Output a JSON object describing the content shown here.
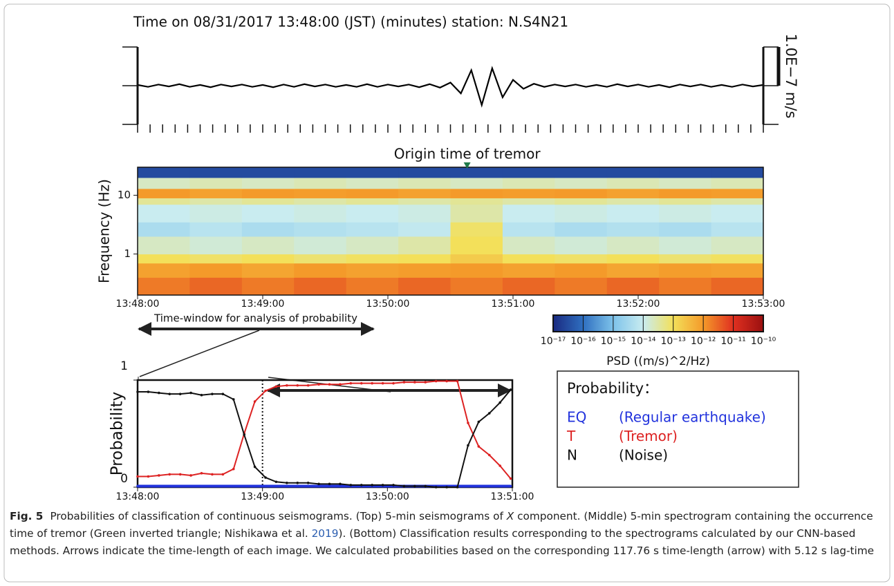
{
  "chart_data": [
    {
      "type": "waveform",
      "title": "Time on 08/31/2017 13:48:00 (JST) (minutes)  station: N.S4N21",
      "color": "#000000",
      "x": [
        0,
        5,
        10,
        15,
        20,
        25,
        30,
        35,
        40,
        45,
        50,
        55,
        60,
        65,
        70,
        75,
        80,
        85,
        90,
        95,
        100,
        105,
        110,
        115,
        120,
        125,
        130,
        135,
        140,
        145,
        150,
        155,
        160,
        165,
        170,
        175,
        180,
        185,
        190,
        195,
        200,
        205,
        210,
        215,
        220,
        225,
        230,
        235,
        240,
        245,
        250,
        255,
        260,
        265,
        270,
        275,
        280,
        285,
        290,
        295,
        300
      ],
      "values": [
        2e-09,
        -3e-09,
        3e-09,
        -2e-09,
        4e-09,
        -3e-09,
        2e-09,
        -4e-09,
        3e-09,
        -2e-09,
        3e-09,
        -3e-09,
        2e-09,
        -4e-09,
        3e-09,
        -3e-09,
        4e-09,
        -2e-09,
        3e-09,
        -3e-09,
        2e-09,
        -3e-09,
        4e-09,
        -3e-09,
        3e-09,
        -2e-09,
        3e-09,
        -4e-09,
        4e-09,
        -5e-09,
        8e-09,
        -2e-08,
        4e-08,
        -5e-08,
        4.5e-08,
        -3e-08,
        1.5e-08,
        -8e-09,
        5e-09,
        -3e-09,
        3e-09,
        -2e-09,
        3e-09,
        -3e-09,
        2e-09,
        -3e-09,
        4e-09,
        -2e-09,
        3e-09,
        -3e-09,
        2e-09,
        -4e-09,
        3e-09,
        -2e-09,
        3e-09,
        -3e-09,
        2e-09,
        -3e-09,
        3e-09,
        -2e-09,
        2e-09
      ],
      "xlim": [
        0,
        300
      ],
      "ylim": [
        -1e-07,
        1e-07
      ],
      "scale_bar": {
        "value": 1e-07,
        "label": "1.0E−7 m/s"
      }
    },
    {
      "type": "heatmap",
      "y_label": "Frequency (Hz)",
      "log_y": true,
      "x_bins": [
        0,
        25,
        50,
        75,
        100,
        125,
        150,
        175,
        200,
        225,
        250,
        275,
        300
      ],
      "y_bins": [
        0.2,
        0.4,
        0.7,
        1,
        2,
        3.5,
        7,
        9,
        13,
        20,
        30
      ],
      "values": [
        [
          2e-12,
          3e-12,
          2e-12,
          3e-12,
          2e-12,
          3e-12,
          2e-12,
          3e-12,
          2e-12,
          3e-12,
          2e-12,
          3e-12
        ],
        [
          8e-13,
          1e-12,
          7e-13,
          1e-12,
          8e-13,
          9e-13,
          1e-12,
          8e-13,
          1e-12,
          7e-13,
          9e-13,
          8e-13
        ],
        [
          1e-13,
          8e-14,
          1e-13,
          7e-14,
          9e-14,
          1e-13,
          2e-13,
          1e-13,
          8e-14,
          1e-13,
          7e-14,
          9e-14
        ],
        [
          2e-14,
          1.5e-14,
          2e-14,
          1.5e-14,
          2e-14,
          3e-14,
          1e-13,
          2e-14,
          1.5e-14,
          2e-14,
          1.5e-14,
          2e-14
        ],
        [
          4e-15,
          6e-15,
          4e-15,
          5e-15,
          6e-15,
          8e-15,
          8e-14,
          6e-15,
          4e-15,
          5e-15,
          4e-15,
          6e-15
        ],
        [
          1e-14,
          1.2e-14,
          1e-14,
          1.2e-14,
          1e-14,
          1.2e-14,
          3e-14,
          1e-14,
          1.2e-14,
          1e-14,
          1.2e-14,
          1e-14
        ],
        [
          4e-14,
          3e-14,
          4e-14,
          3e-14,
          4e-14,
          3e-14,
          4e-14,
          3e-14,
          4e-14,
          3e-14,
          4e-14,
          3e-14
        ],
        [
          1e-12,
          8e-13,
          1e-12,
          9e-13,
          1e-12,
          8e-13,
          1e-12,
          9e-13,
          1e-12,
          8e-13,
          1e-12,
          9e-13
        ],
        [
          2e-14,
          2.5e-14,
          2e-14,
          2.5e-14,
          2e-14,
          2.5e-14,
          2e-14,
          2.5e-14,
          2e-14,
          2.5e-14,
          2e-14,
          2.5e-14
        ],
        [
          3e-17,
          3e-17,
          3e-17,
          3e-17,
          3e-17,
          3e-17,
          3e-17,
          3e-17,
          3e-17,
          3e-17,
          3e-17,
          3e-17
        ]
      ],
      "xlim": [
        0,
        300
      ],
      "ylim": [
        0.2,
        30
      ],
      "yticks": [
        1,
        10
      ],
      "xticks": [
        {
          "value": 0,
          "label": "13:48:00"
        },
        {
          "value": 60,
          "label": "13:49:00"
        },
        {
          "value": 120,
          "label": "13:50:00"
        },
        {
          "value": 180,
          "label": "13:51:00"
        },
        {
          "value": 240,
          "label": "13:52:00"
        },
        {
          "value": 300,
          "label": "13:53:00"
        }
      ],
      "annotation": {
        "text": "Origin time of tremor",
        "x": 158,
        "color": "#1f7a4a"
      },
      "window_label": "Time-window for analysis of probability",
      "colorbar": {
        "label": "PSD ((m/s)^2/Hz)",
        "lim": [
          1e-17,
          1e-10
        ],
        "ticks": [
          {
            "value": 1e-17,
            "label": "10⁻¹⁷"
          },
          {
            "value": 1e-16,
            "label": "10⁻¹⁶"
          },
          {
            "value": 1e-15,
            "label": "10⁻¹⁵"
          },
          {
            "value": 1e-14,
            "label": "10⁻¹⁴"
          },
          {
            "value": 1e-13,
            "label": "10⁻¹³"
          },
          {
            "value": 1e-12,
            "label": "10⁻¹²"
          },
          {
            "value": 1e-11,
            "label": "10⁻¹¹"
          },
          {
            "value": 1e-10,
            "label": "10⁻¹⁰"
          }
        ]
      }
    },
    {
      "type": "line",
      "y_label": "Probability",
      "x": [
        0,
        5.12,
        10.24,
        15.36,
        20.48,
        25.6,
        30.72,
        35.84,
        40.96,
        46.08,
        51.2,
        56.32,
        61.44,
        66.56,
        71.68,
        76.8,
        81.92,
        87.04,
        92.16,
        97.28,
        102.4,
        107.52,
        112.64,
        117.76,
        122.88,
        128,
        133.12,
        138.24,
        143.36,
        148.48,
        153.6,
        158.72,
        163.84,
        168.96,
        174.08,
        179.2
      ],
      "series": [
        {
          "name": "EQ",
          "description": "(Regular earthquake)",
          "color": "#2233dd",
          "values": [
            0.01,
            0.01,
            0.01,
            0.01,
            0.01,
            0.01,
            0.01,
            0.01,
            0.01,
            0.01,
            0.01,
            0.01,
            0.01,
            0.01,
            0.01,
            0.01,
            0.01,
            0.01,
            0.01,
            0.01,
            0.01,
            0.01,
            0.01,
            0.01,
            0.01,
            0.01,
            0.01,
            0.01,
            0.01,
            0.01,
            0.01,
            0.01,
            0.01,
            0.01,
            0.01,
            0.01
          ]
        },
        {
          "name": "T",
          "description": "(Tremor)",
          "color": "#dd2222",
          "values": [
            0.1,
            0.1,
            0.11,
            0.12,
            0.12,
            0.11,
            0.13,
            0.12,
            0.12,
            0.17,
            0.5,
            0.8,
            0.9,
            0.94,
            0.95,
            0.95,
            0.95,
            0.96,
            0.96,
            0.96,
            0.97,
            0.97,
            0.97,
            0.97,
            0.97,
            0.98,
            0.98,
            0.98,
            0.99,
            0.99,
            0.99,
            0.6,
            0.38,
            0.3,
            0.2,
            0.08
          ]
        },
        {
          "name": "N",
          "description": "(Noise)",
          "color": "#111111",
          "values": [
            0.89,
            0.89,
            0.88,
            0.87,
            0.87,
            0.88,
            0.86,
            0.87,
            0.87,
            0.82,
            0.49,
            0.19,
            0.09,
            0.05,
            0.04,
            0.04,
            0.04,
            0.03,
            0.03,
            0.03,
            0.02,
            0.02,
            0.02,
            0.02,
            0.02,
            0.01,
            0.01,
            0.01,
            0,
            0,
            0,
            0.39,
            0.61,
            0.69,
            0.79,
            0.91
          ]
        }
      ],
      "legend_title": "Probability：",
      "xlim": [
        0,
        180
      ],
      "ylim": [
        0,
        1
      ],
      "yticks": [
        0,
        1
      ],
      "marker_x": 60,
      "xticks": [
        {
          "value": 0,
          "label": "13:48:00"
        },
        {
          "value": 60,
          "label": "13:49:00"
        },
        {
          "value": 120,
          "label": "13:50:00"
        },
        {
          "value": 180,
          "label": "13:51:00"
        }
      ]
    }
  ],
  "caption": {
    "label": "Fig. 5",
    "parts": [
      "Probabilities of classification of continuous seismograms. (Top) 5-min seismograms of ",
      "X",
      " component. (Middle) 5-min spectrogram containing the occurrence time of tremor (Green inverted triangle; Nishikawa et al. ",
      "2019",
      "). (Bottom) Classification results corresponding to the spectrograms calculated by our CNN-based methods. Arrows indicate the time-length of each image. We calculated probabilities based on the corresponding 117.76 s time-length (arrow) with 5.12 s lag-time"
    ]
  }
}
